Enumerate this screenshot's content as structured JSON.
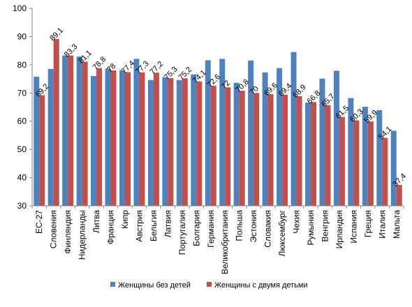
{
  "chart_data": {
    "type": "bar",
    "categories": [
      "ЕС-27",
      "Словения",
      "Финляндия",
      "Нидерланды",
      "Литва",
      "Франция",
      "Кипр",
      "Австрия",
      "Бельгия",
      "Латвия",
      "Португалия",
      "Болгария",
      "Германия",
      "Великобритания",
      "Польша",
      "Эстония",
      "Словакия",
      "Люксембург",
      "Чехия",
      "Румыния",
      "Венгрия",
      "Ирландия",
      "Испания",
      "Греция",
      "Италия",
      "Мальта"
    ],
    "series": [
      {
        "name": "Женщины без детей",
        "color": "#4F81BD",
        "values": [
          75.8,
          78.5,
          83.3,
          82.9,
          76.0,
          78.6,
          78.0,
          82.1,
          74.6,
          75.6,
          74.6,
          76.6,
          81.6,
          82.1,
          73.6,
          81.5,
          77.3,
          78.8,
          84.5,
          66.6,
          75.1,
          77.9,
          68.2,
          65.1,
          63.9,
          56.6
        ],
        "labels_shown": false
      },
      {
        "name": "Женщины с двумя детьми",
        "color": "#C0504D",
        "values": [
          69.2,
          89.1,
          83.3,
          81.1,
          78.8,
          78.0,
          77.4,
          77.3,
          77.2,
          75.3,
          75.2,
          74.1,
          72.6,
          72.0,
          70.8,
          70.0,
          69.6,
          69.4,
          68.9,
          66.8,
          65.7,
          61.5,
          60.3,
          59.9,
          54.1,
          37.4
        ],
        "data_labels": [
          "69,2",
          "89,1",
          "83,3",
          "81,1",
          "78,8",
          "78",
          "77,4",
          "77,3",
          "77,2",
          "75,3",
          "75,2",
          "74,1",
          "72,6",
          "72",
          "70,8",
          "70",
          "69,6",
          "69,4",
          "68,9",
          "66,8",
          "65,7",
          "61,5",
          "60,3",
          "59,9",
          "54,1",
          "37,4"
        ]
      }
    ],
    "ylim": [
      30,
      100
    ],
    "yticks": [
      "30",
      "40",
      "50",
      "60",
      "70",
      "80",
      "90",
      "100"
    ],
    "grid": false,
    "legend_position": "bottom",
    "title": "",
    "xlabel": "",
    "ylabel": ""
  }
}
